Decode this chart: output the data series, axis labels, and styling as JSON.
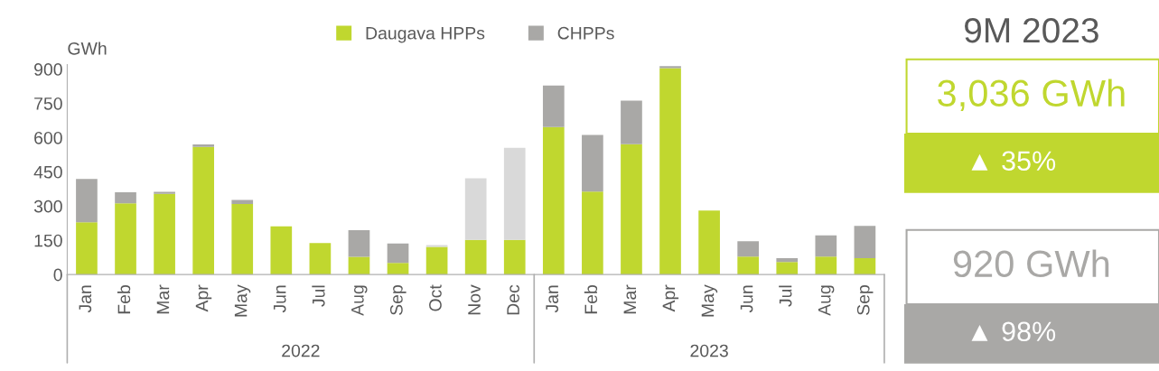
{
  "chart_data": [
    {
      "type": "bar",
      "stacked": true,
      "ylabel": "GWh",
      "legend": "top",
      "categories": [
        "Jan",
        "Feb",
        "Mar",
        "Apr",
        "May",
        "Jun",
        "Jul",
        "Aug",
        "Sep",
        "Oct",
        "Nov",
        "Dec",
        "Jan",
        "Feb",
        "Mar",
        "Apr",
        "May",
        "Jun",
        "Jul",
        "Aug",
        "Sep"
      ],
      "series": [
        {
          "name": "Daugava HPPs",
          "color": "#c0d72f",
          "values": [
            229,
            312,
            354,
            559,
            309,
            211,
            138,
            78,
            51,
            121,
            152,
            152,
            646,
            363,
            571,
            904,
            280,
            79,
            55,
            79,
            72
          ]
        },
        {
          "name": "CHPPs",
          "color": "#a9a8a6",
          "colors": [
            "#a9a8a6",
            "#a9a8a6",
            "#a9a8a6",
            "#a9a8a6",
            "#a9a8a6",
            "#a9a8a6",
            "#a9a8a6",
            "#a9a8a6",
            "#a9a8a6",
            "#d9d9d9",
            "#d9d9d9",
            "#d9d9d9",
            "#a9a8a6",
            "#a9a8a6",
            "#a9a8a6",
            "#a9a8a6",
            "#a9a8a6",
            "#a9a8a6",
            "#a9a8a6",
            "#a9a8a6",
            "#a9a8a6"
          ],
          "values": [
            190,
            48,
            8,
            11,
            18,
            0,
            0,
            116,
            85,
            8,
            270,
            403,
            182,
            249,
            191,
            9,
            0,
            67,
            17,
            93,
            141
          ]
        }
      ],
      "ylim": [
        0,
        920
      ],
      "yticks": [
        0,
        150,
        300,
        450,
        600,
        750,
        900
      ],
      "grid": false,
      "annotations": [
        "2022",
        "2023"
      ]
    },
    {
      "type": "other",
      "colors": [
        "#c0d72f",
        "#a9a8a6"
      ],
      "annotations": [
        "9M 2023",
        "3,036 GWh",
        "▲ 35%",
        "920 GWh",
        "▲ 98%"
      ]
    }
  ]
}
